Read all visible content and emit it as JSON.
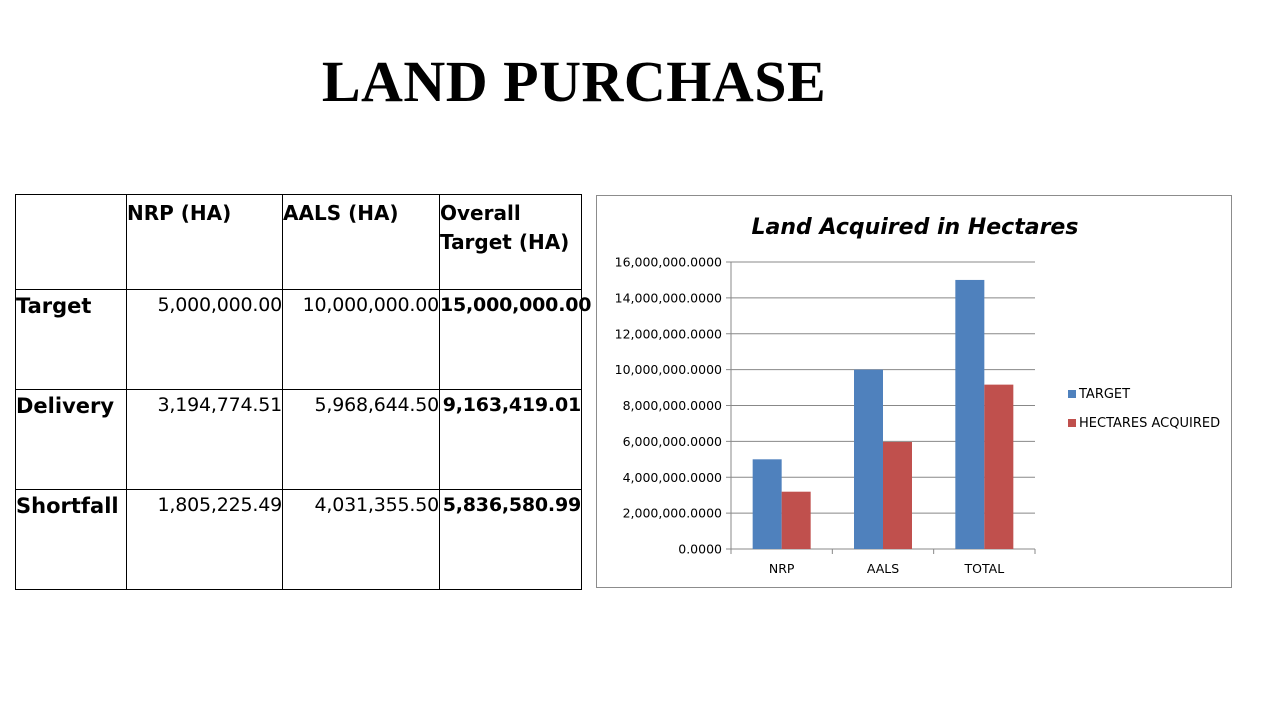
{
  "slide": {
    "title": "LAND PURCHASE"
  },
  "table": {
    "columns": [
      "",
      "NRP (HA)",
      "AALS (HA)",
      "Overall Target (HA)"
    ],
    "rows": [
      {
        "label": "Target",
        "nrp": "5,000,000.00",
        "aals": "10,000,000.00",
        "overall": "15,000,000.00"
      },
      {
        "label": "Delivery",
        "nrp": "3,194,774.51",
        "aals": "5,968,644.50",
        "overall": "9,163,419.01"
      },
      {
        "label": "Shortfall",
        "nrp": "1,805,225.49",
        "aals": "4,031,355.50",
        "overall": "5,836,580.99"
      }
    ]
  },
  "chart_data": {
    "type": "bar",
    "title": "Land Acquired in Hectares",
    "categories": [
      "NRP",
      "AALS",
      "TOTAL"
    ],
    "series": [
      {
        "name": "TARGET",
        "values": [
          5000000,
          10000000,
          15000000
        ],
        "color": "#4f81bd"
      },
      {
        "name": "HECTARES ACQUIRED",
        "values": [
          3194774.51,
          5968644.5,
          9163419.01
        ],
        "color": "#c0504d"
      }
    ],
    "ylim": [
      0,
      16000000
    ],
    "yticks": [
      "0.0000",
      "2,000,000.0000",
      "4,000,000.0000",
      "6,000,000.0000",
      "8,000,000.0000",
      "10,000,000.0000",
      "12,000,000.0000",
      "14,000,000.0000",
      "16,000,000.0000"
    ],
    "grid": true,
    "legend": "right"
  }
}
